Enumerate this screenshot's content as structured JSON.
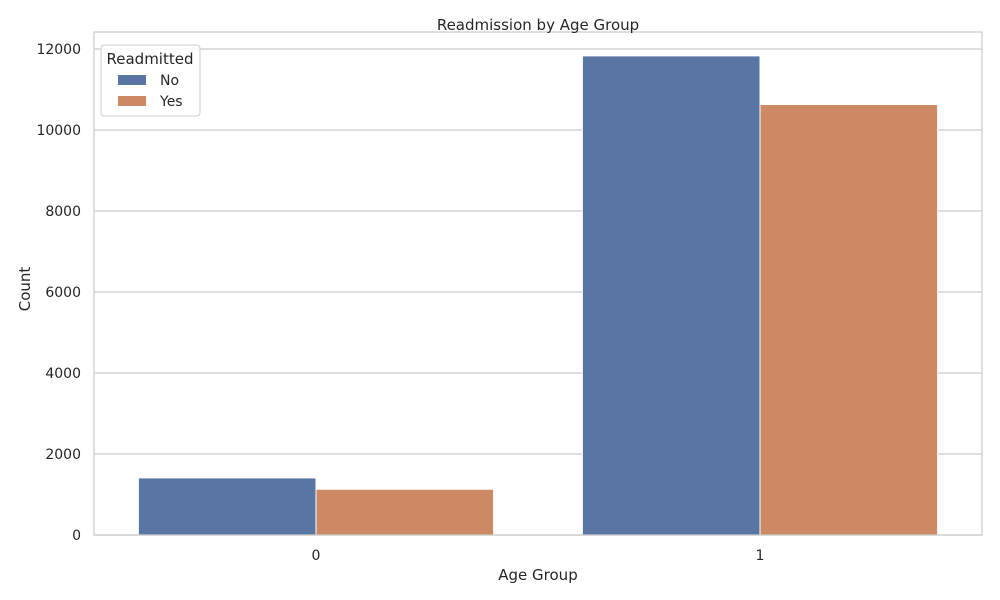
{
  "chart_data": {
    "type": "bar",
    "title": "Readmission by Age Group",
    "xlabel": "Age Group",
    "ylabel": "Count",
    "categories": [
      "0",
      "1"
    ],
    "series": [
      {
        "name": "No",
        "values": [
          1410,
          11830
        ],
        "color": "#5875a4"
      },
      {
        "name": "Yes",
        "values": [
          1130,
          10630
        ],
        "color": "#cc8963"
      }
    ],
    "ylim": [
      0,
      12420
    ],
    "yticks": [
      0,
      2000,
      4000,
      6000,
      8000,
      10000,
      12000
    ],
    "grid": true,
    "legend": {
      "title": "Readmitted",
      "position": "top-left"
    }
  }
}
